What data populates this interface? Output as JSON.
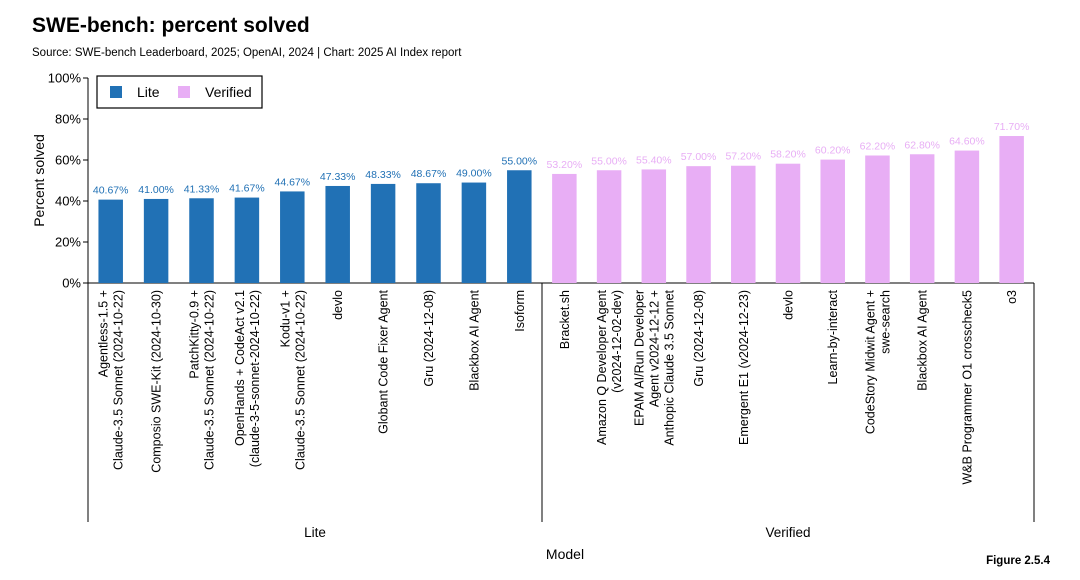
{
  "header": {
    "title": "SWE-bench: percent solved",
    "subtitle": "Source: SWE-bench Leaderboard, 2025; OpenAI, 2024 | Chart: 2025 AI Index report",
    "figure": "Figure 2.5.4"
  },
  "chart_data": {
    "type": "bar",
    "ylabel": "Percent solved",
    "xlabel": "Model",
    "ylim": [
      0,
      100
    ],
    "yticks": [
      "0%",
      "20%",
      "40%",
      "60%",
      "80%",
      "100%"
    ],
    "grid": false,
    "legend_position": "top-left",
    "colors": {
      "Lite": "#2171b5",
      "Verified": "#e8aef5"
    },
    "groups": [
      {
        "name": "Lite",
        "bars": [
          {
            "label": [
              "Agentless-1.5 +",
              "Claude-3.5 Sonnet (2024-10-22)"
            ],
            "value": 40.67,
            "text": "40.67%"
          },
          {
            "label": [
              "Composio SWE-Kit (2024-10-30)"
            ],
            "value": 41.0,
            "text": "41.00%"
          },
          {
            "label": [
              "PatchKitty-0.9 +",
              "Claude-3.5 Sonnet (2024-10-22)"
            ],
            "value": 41.33,
            "text": "41.33%"
          },
          {
            "label": [
              "OpenHands + CodeAct v2.1",
              "(claude-3-5-sonnet-2024-10-22)"
            ],
            "value": 41.67,
            "text": "41.67%"
          },
          {
            "label": [
              "Kodu-v1 +",
              "Claude-3.5 Sonnet (2024-10-22)"
            ],
            "value": 44.67,
            "text": "44.67%"
          },
          {
            "label": [
              "devlo"
            ],
            "value": 47.33,
            "text": "47.33%"
          },
          {
            "label": [
              "Globant Code Fixer Agent"
            ],
            "value": 48.33,
            "text": "48.33%"
          },
          {
            "label": [
              "Gru (2024-12-08)"
            ],
            "value": 48.67,
            "text": "48.67%"
          },
          {
            "label": [
              "Blackbox AI Agent"
            ],
            "value": 49.0,
            "text": "49.00%"
          },
          {
            "label": [
              "Isoform"
            ],
            "value": 55.0,
            "text": "55.00%"
          }
        ]
      },
      {
        "name": "Verified",
        "bars": [
          {
            "label": [
              "Bracket.sh"
            ],
            "value": 53.2,
            "text": "53.20%"
          },
          {
            "label": [
              "Amazon Q Developer Agent",
              "(v2024-12-02-dev)"
            ],
            "value": 55.0,
            "text": "55.00%"
          },
          {
            "label": [
              "EPAM AI/Run Developer",
              "Agent v2024-12-12 +",
              "Anthopic Claude 3.5 Sonnet"
            ],
            "value": 55.4,
            "text": "55.40%"
          },
          {
            "label": [
              "Gru (2024-12-08)"
            ],
            "value": 57.0,
            "text": "57.00%"
          },
          {
            "label": [
              "Emergent E1 (v2024-12-23)"
            ],
            "value": 57.2,
            "text": "57.20%"
          },
          {
            "label": [
              "devlo"
            ],
            "value": 58.2,
            "text": "58.20%"
          },
          {
            "label": [
              "Learn-by-interact"
            ],
            "value": 60.2,
            "text": "60.20%"
          },
          {
            "label": [
              "CodeStory Midwit Agent +",
              "swe-search"
            ],
            "value": 62.2,
            "text": "62.20%"
          },
          {
            "label": [
              "Blackbox AI Agent"
            ],
            "value": 62.8,
            "text": "62.80%"
          },
          {
            "label": [
              "W&B Programmer O1 crosscheck5"
            ],
            "value": 64.6,
            "text": "64.60%"
          },
          {
            "label": [
              "o3"
            ],
            "value": 71.7,
            "text": "71.70%"
          }
        ]
      }
    ]
  }
}
